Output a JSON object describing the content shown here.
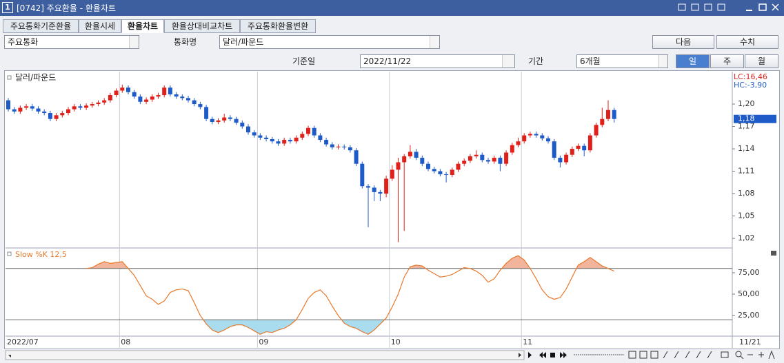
{
  "window": {
    "icon": "1",
    "title": "[0742] 주요환율 - 환율차트"
  },
  "tabs": [
    "주요통화기준환율",
    "환율시세",
    "환율차트",
    "환율상대비교차트",
    "주요통화환율변환"
  ],
  "active_tab": 2,
  "form": {
    "currency_group": "주요통화",
    "currency_label": "통화명",
    "currency": "달러/파운드",
    "next_button": "다음",
    "values_button": "수치",
    "date_label": "기준일",
    "date": "2022/11/22",
    "period_label": "기간",
    "period": "6개월",
    "interval_buttons": [
      "일",
      "주",
      "월"
    ],
    "active_interval": 0
  },
  "last_date_label": "11/21",
  "chart_data": [
    {
      "type": "candlestick",
      "title": "달러/파운드",
      "annotations": [
        {
          "text": "LC:16,46",
          "color": "#e0201b"
        },
        {
          "text": "HC:-3,90",
          "color": "#1f5bc8"
        }
      ],
      "up_color": "#e0201b",
      "down_color": "#1f5bc8",
      "categories": [
        "2022/07",
        null,
        null,
        null,
        null,
        null,
        null,
        null,
        null,
        null,
        null,
        null,
        null,
        null,
        null,
        null,
        null,
        null,
        null,
        "08",
        null,
        null,
        null,
        null,
        null,
        null,
        null,
        null,
        null,
        null,
        null,
        null,
        null,
        null,
        null,
        null,
        null,
        null,
        null,
        null,
        null,
        null,
        "09",
        null,
        null,
        null,
        null,
        null,
        null,
        null,
        null,
        null,
        null,
        null,
        null,
        null,
        null,
        null,
        null,
        null,
        null,
        null,
        null,
        null,
        "10",
        null,
        null,
        null,
        null,
        null,
        null,
        null,
        null,
        null,
        null,
        null,
        null,
        null,
        null,
        null,
        null,
        null,
        null,
        null,
        null,
        null,
        "11",
        null,
        null,
        null,
        null,
        null,
        null,
        null,
        null,
        null,
        null,
        null,
        null,
        null,
        null,
        null
      ],
      "open": [
        1.205,
        1.193,
        1.19,
        1.195,
        1.197,
        1.194,
        1.19,
        1.188,
        1.18,
        1.185,
        1.188,
        1.193,
        1.197,
        1.195,
        1.198,
        1.2,
        1.202,
        1.205,
        1.212,
        1.218,
        1.222,
        1.216,
        1.21,
        1.203,
        1.206,
        1.21,
        1.212,
        1.222,
        1.213,
        1.21,
        1.208,
        1.205,
        1.2,
        1.196,
        1.18,
        1.176,
        1.178,
        1.182,
        1.18,
        1.175,
        1.17,
        1.162,
        1.158,
        1.155,
        1.153,
        1.15,
        1.147,
        1.152,
        1.15,
        1.155,
        1.16,
        1.168,
        1.158,
        1.152,
        1.146,
        1.142,
        1.143,
        1.142,
        1.138,
        1.12,
        1.09,
        1.088,
        1.082,
        1.08,
        1.1,
        1.112,
        1.122,
        1.13,
        1.136,
        1.128,
        1.12,
        1.113,
        1.11,
        1.106,
        1.105,
        1.112,
        1.12,
        1.124,
        1.13,
        1.132,
        1.125,
        1.123,
        1.128,
        1.12,
        1.135,
        1.145,
        1.15,
        1.158,
        1.16,
        1.158,
        1.154,
        1.15,
        1.128,
        1.122,
        1.132,
        1.14,
        1.144,
        1.138,
        1.158,
        1.172,
        1.18,
        1.192
      ],
      "high": [
        1.208,
        1.196,
        1.198,
        1.2,
        1.2,
        1.197,
        1.193,
        1.191,
        1.188,
        1.191,
        1.196,
        1.2,
        1.2,
        1.201,
        1.203,
        1.205,
        1.208,
        1.215,
        1.221,
        1.226,
        1.225,
        1.219,
        1.213,
        1.209,
        1.213,
        1.215,
        1.225,
        1.225,
        1.216,
        1.213,
        1.211,
        1.208,
        1.203,
        1.199,
        1.183,
        1.181,
        1.187,
        1.185,
        1.183,
        1.178,
        1.173,
        1.165,
        1.161,
        1.158,
        1.156,
        1.153,
        1.155,
        1.155,
        1.158,
        1.163,
        1.171,
        1.171,
        1.161,
        1.155,
        1.149,
        1.146,
        1.146,
        1.145,
        1.141,
        1.123,
        1.093,
        1.091,
        1.085,
        1.104,
        1.118,
        1.128,
        1.133,
        1.145,
        1.14,
        1.131,
        1.123,
        1.116,
        1.113,
        1.109,
        1.115,
        1.123,
        1.127,
        1.133,
        1.138,
        1.135,
        1.128,
        1.131,
        1.131,
        1.138,
        1.148,
        1.155,
        1.161,
        1.163,
        1.163,
        1.161,
        1.157,
        1.153,
        1.131,
        1.135,
        1.143,
        1.147,
        1.147,
        1.161,
        1.175,
        1.195,
        1.205,
        1.195
      ],
      "low": [
        1.19,
        1.187,
        1.187,
        1.192,
        1.191,
        1.187,
        1.185,
        1.177,
        1.177,
        1.182,
        1.185,
        1.19,
        1.192,
        1.192,
        1.195,
        1.197,
        1.199,
        1.202,
        1.209,
        1.215,
        1.213,
        1.207,
        1.2,
        1.2,
        1.203,
        1.207,
        1.209,
        1.21,
        1.207,
        1.205,
        1.202,
        1.197,
        1.193,
        1.177,
        1.173,
        1.173,
        1.175,
        1.177,
        1.172,
        1.167,
        1.159,
        1.155,
        1.152,
        1.15,
        1.147,
        1.144,
        1.144,
        1.147,
        1.147,
        1.152,
        1.157,
        1.155,
        1.149,
        1.143,
        1.139,
        1.139,
        1.139,
        1.135,
        1.117,
        1.087,
        1.035,
        1.07,
        1.07,
        1.075,
        1.097,
        1.015,
        1.03,
        1.127,
        1.125,
        1.117,
        1.11,
        1.107,
        1.103,
        1.095,
        1.102,
        1.109,
        1.117,
        1.121,
        1.127,
        1.122,
        1.12,
        1.12,
        1.11,
        1.117,
        1.132,
        1.142,
        1.147,
        1.155,
        1.155,
        1.151,
        1.147,
        1.125,
        1.115,
        1.119,
        1.129,
        1.137,
        1.13,
        1.135,
        1.155,
        1.169,
        1.177,
        1.175
      ],
      "close": [
        1.193,
        1.19,
        1.195,
        1.197,
        1.194,
        1.19,
        1.188,
        1.18,
        1.185,
        1.188,
        1.193,
        1.197,
        1.195,
        1.198,
        1.2,
        1.202,
        1.205,
        1.212,
        1.218,
        1.222,
        1.216,
        1.21,
        1.203,
        1.206,
        1.21,
        1.212,
        1.222,
        1.213,
        1.21,
        1.208,
        1.205,
        1.2,
        1.196,
        1.18,
        1.176,
        1.178,
        1.182,
        1.18,
        1.175,
        1.17,
        1.162,
        1.158,
        1.155,
        1.153,
        1.15,
        1.147,
        1.152,
        1.15,
        1.155,
        1.16,
        1.168,
        1.158,
        1.152,
        1.146,
        1.142,
        1.143,
        1.142,
        1.138,
        1.12,
        1.09,
        1.088,
        1.082,
        1.08,
        1.1,
        1.112,
        1.122,
        1.13,
        1.136,
        1.128,
        1.12,
        1.113,
        1.11,
        1.106,
        1.105,
        1.112,
        1.12,
        1.124,
        1.13,
        1.132,
        1.125,
        1.123,
        1.128,
        1.12,
        1.135,
        1.145,
        1.15,
        1.158,
        1.16,
        1.158,
        1.154,
        1.15,
        1.128,
        1.122,
        1.132,
        1.14,
        1.144,
        1.138,
        1.158,
        1.172,
        1.18,
        1.192,
        1.18
      ],
      "current_price": {
        "value": 1.18,
        "label": "1,18"
      },
      "ylim": [
        1.009,
        1.2425
      ],
      "yticks": [
        {
          "value": 1.02,
          "label": "1,02"
        },
        {
          "value": 1.05,
          "label": "1,05"
        },
        {
          "value": 1.08,
          "label": "1,08"
        },
        {
          "value": 1.11,
          "label": "1,11"
        },
        {
          "value": 1.14,
          "label": "1,14"
        },
        {
          "value": 1.17,
          "label": "1,17"
        },
        {
          "value": 1.2,
          "label": "1,20"
        }
      ]
    },
    {
      "type": "line",
      "series": [
        {
          "name": "Slow %K 12,5",
          "color": "#e8782a",
          "values": [
            null,
            null,
            null,
            null,
            null,
            null,
            null,
            null,
            null,
            null,
            null,
            null,
            null,
            80,
            81,
            85,
            88,
            86,
            87,
            88,
            80,
            72,
            60,
            48,
            44,
            38,
            42,
            52,
            55,
            56,
            54,
            40,
            25,
            15,
            8,
            5,
            8,
            12,
            14,
            14,
            11,
            7,
            3,
            6,
            5,
            8,
            10,
            14,
            20,
            32,
            45,
            52,
            55,
            48,
            36,
            25,
            16,
            12,
            10,
            6,
            3,
            8,
            15,
            22,
            35,
            50,
            70,
            82,
            84,
            83,
            78,
            74,
            70,
            71,
            73,
            77,
            81,
            80,
            77,
            72,
            64,
            68,
            78,
            86,
            92,
            95,
            90,
            80,
            68,
            55,
            47,
            44,
            46,
            56,
            70,
            84,
            88,
            93,
            88,
            83,
            80,
            77
          ]
        }
      ],
      "reference_lines": [
        20,
        80
      ],
      "fill_above_color": "#f2b49a",
      "fill_below_color": "#a9dcef",
      "ylim": [
        0,
        100
      ],
      "yticks": [
        {
          "value": 25,
          "label": "25,00"
        },
        {
          "value": 50,
          "label": "50,00"
        },
        {
          "value": 75,
          "label": "75,00"
        }
      ]
    }
  ]
}
